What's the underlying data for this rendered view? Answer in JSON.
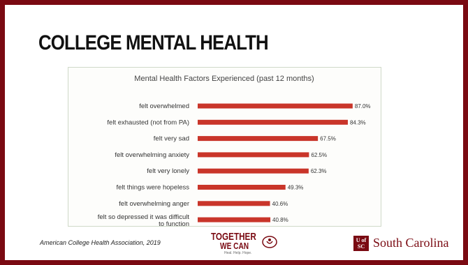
{
  "slide": {
    "title": "COLLEGE MENTAL HEALTH",
    "citation": "American College Health Association, 2019"
  },
  "logos": {
    "together_line1": "TOGETHER",
    "together_line2": "WE CAN",
    "together_tagline": "Heal. Help. Hope.",
    "usc_mark": "U of SC",
    "usc_name": "South Carolina"
  },
  "colors": {
    "bar": "#c9352a",
    "frame": "#7a0a12"
  },
  "chart_data": {
    "type": "bar",
    "orientation": "horizontal",
    "title": "Mental Health Factors Experienced (past 12 months)",
    "categories": [
      "felt overwhelmed",
      "felt exhausted (not from PA)",
      "felt very sad",
      "felt overwhelming anxiety",
      "felt very lonely",
      "felt things were hopeless",
      "felt overwhelming anger",
      "felt so depressed it was difficult to function"
    ],
    "category_lines": [
      [
        "felt overwhelmed"
      ],
      [
        "felt exhausted (not from PA)"
      ],
      [
        "felt very sad"
      ],
      [
        "felt overwhelming anxiety"
      ],
      [
        "felt very lonely"
      ],
      [
        "felt things were hopeless"
      ],
      [
        "felt overwhelming anger"
      ],
      [
        "felt so depressed it was difficult",
        "to function"
      ]
    ],
    "values": [
      87.0,
      84.3,
      67.5,
      62.5,
      62.3,
      49.3,
      40.6,
      40.8
    ],
    "value_labels": [
      "87.0%",
      "84.3%",
      "67.5%",
      "62.5%",
      "62.3%",
      "49.3%",
      "40.6%",
      "40.8%"
    ],
    "xlim": [
      0,
      100
    ],
    "grid": false,
    "legend": "none"
  }
}
